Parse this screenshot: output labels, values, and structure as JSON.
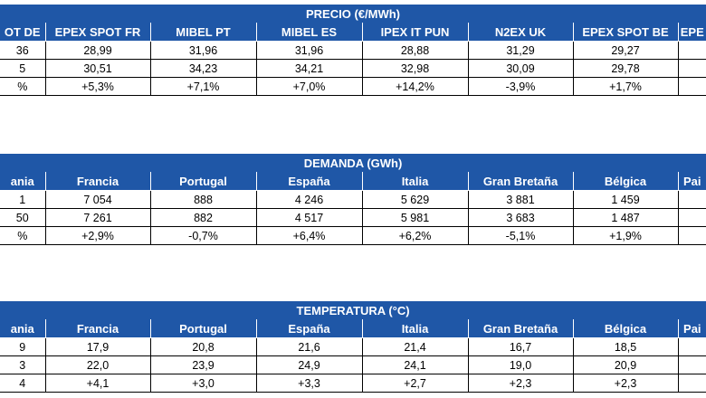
{
  "tables": [
    {
      "title": "PRECIO (€/MWh)",
      "headers": [
        "OT DE",
        "EPEX SPOT FR",
        "MIBEL PT",
        "MIBEL ES",
        "IPEX IT PUN",
        "N2EX UK",
        "EPEX SPOT BE",
        "EPE"
      ],
      "rows": [
        [
          "36",
          "28,99",
          "31,96",
          "31,96",
          "28,88",
          "31,29",
          "29,27"
        ],
        [
          "5",
          "30,51",
          "34,23",
          "34,21",
          "32,98",
          "30,09",
          "29,78"
        ],
        [
          "%",
          "+5,3%",
          "+7,1%",
          "+7,0%",
          "+14,2%",
          "-3,9%",
          "+1,7%"
        ]
      ]
    },
    {
      "title": "DEMANDA (GWh)",
      "headers": [
        "ania",
        "Francia",
        "Portugal",
        "España",
        "Italia",
        "Gran Bretaña",
        "Bélgica",
        "Pai"
      ],
      "rows": [
        [
          "1",
          "7 054",
          "888",
          "4 246",
          "5 629",
          "3 881",
          "1 459"
        ],
        [
          "50",
          "7 261",
          "882",
          "4 517",
          "5 981",
          "3 683",
          "1 487"
        ],
        [
          "%",
          "+2,9%",
          "-0,7%",
          "+6,4%",
          "+6,2%",
          "-5,1%",
          "+1,9%"
        ]
      ]
    },
    {
      "title": "TEMPERATURA (°C)",
      "headers": [
        "ania",
        "Francia",
        "Portugal",
        "España",
        "Italia",
        "Gran Bretaña",
        "Bélgica",
        "Pai"
      ],
      "rows": [
        [
          "9",
          "17,9",
          "20,8",
          "21,6",
          "21,4",
          "16,7",
          "18,5"
        ],
        [
          "3",
          "22,0",
          "23,9",
          "24,9",
          "24,1",
          "19,0",
          "20,9"
        ],
        [
          "4",
          "+4,1",
          "+3,0",
          "+3,3",
          "+2,7",
          "+2,3",
          "+2,3"
        ]
      ]
    }
  ]
}
